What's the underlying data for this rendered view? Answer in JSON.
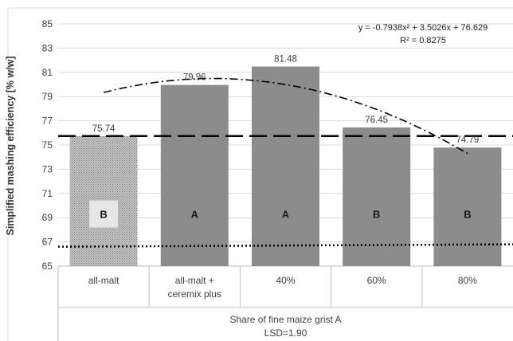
{
  "chart_data": {
    "type": "bar",
    "ylabel": "Simplified mashing efficiency [% w/w]",
    "xlabel_lines": [
      "Share of fine maize grist A",
      "LSD=1.90"
    ],
    "ylim": [
      65,
      85
    ],
    "yticks": [
      65,
      67,
      69,
      71,
      73,
      75,
      77,
      79,
      81,
      83,
      85
    ],
    "grid": "horizontal",
    "categories": [
      [
        "all-malt"
      ],
      [
        "all-malt +",
        "ceremix plus"
      ],
      [
        "40%"
      ],
      [
        "60%"
      ],
      [
        "80%"
      ]
    ],
    "values": [
      75.74,
      79.96,
      81.48,
      76.45,
      74.79
    ],
    "data_labels": [
      "75.74",
      "79.96",
      "81.48",
      "76.45",
      "74.79"
    ],
    "group_letters": [
      "B",
      "A",
      "A",
      "B",
      "B"
    ],
    "bar_colors": [
      "#b3b3b3",
      "#8c8c8c",
      "#8c8c8c",
      "#8c8c8c",
      "#8c8c8c"
    ],
    "bar_patterns": [
      "dotted",
      "solid",
      "solid",
      "solid",
      "solid"
    ],
    "reference_lines": [
      {
        "style": "long-dash",
        "y_start": 75.74,
        "y_end": 75.74
      },
      {
        "style": "dotted",
        "y_start": 66.6,
        "y_end": 66.8
      }
    ],
    "trendline": {
      "style": "dash-dot",
      "coefficients": {
        "a": -0.7938,
        "b": 3.5026,
        "c": 76.629
      },
      "equation": "y = -0.7938x² + 3.5026x + 76.629",
      "r_squared": "R² = 0.8275"
    }
  }
}
